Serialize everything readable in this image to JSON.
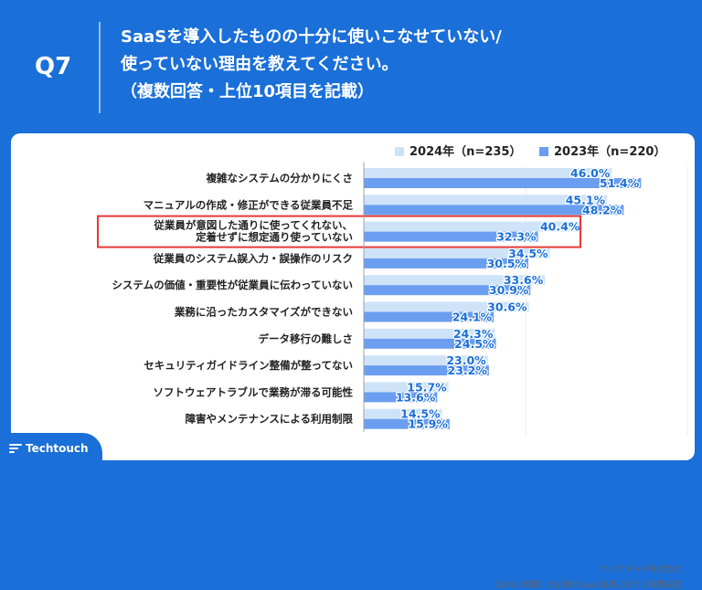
{
  "header": {
    "question_id": "Q7",
    "title_lines": [
      "SaaSを導入したものの十分に使いこなせていない/",
      "使っていない理由を教えてください。",
      "（複数回答・上位10項目を記載）"
    ]
  },
  "chart_data": {
    "type": "bar",
    "orientation": "horizontal",
    "categories": [
      "複雑なシステムの分かりにくさ",
      "マニュアルの作成・修正ができる従業員不足",
      [
        "従業員が意図した通りに使ってくれない、",
        "定着せずに想定通り使っていない"
      ],
      "従業員のシステム誤入力・誤操作のリスク",
      "システムの価値・重要性が従業員に伝わっていない",
      "業務に沿ったカスタマイズができない",
      "データ移行の難しさ",
      "セキュリティガイドライン整備が整ってない",
      "ソフトウェアトラブルで業務が滞る可能性",
      "障害やメンテナンスによる利用制限"
    ],
    "series": [
      {
        "name": "2024年（n=235）",
        "color": "#cfe3f8",
        "label_color": "#1a6fd8",
        "values": [
          46.0,
          45.1,
          40.4,
          34.5,
          33.6,
          30.6,
          24.3,
          23.0,
          15.7,
          14.5
        ]
      },
      {
        "name": "2023年（n=220）",
        "color": "#6b9ef0",
        "label_color": "#1a6fd8",
        "values": [
          51.4,
          48.2,
          32.3,
          30.5,
          30.9,
          24.1,
          24.5,
          23.2,
          13.6,
          15.9
        ]
      }
    ],
    "value_suffix": "%",
    "xlim": [
      0,
      60
    ],
    "highlight_index": 2,
    "highlight_color": "#e53935"
  },
  "footer": {
    "brand": "Techtouch",
    "source_line1": "テックタッチ株式会社",
    "source_line2": "【2024年版】大企業のSaaS活用に関する実態調査"
  }
}
